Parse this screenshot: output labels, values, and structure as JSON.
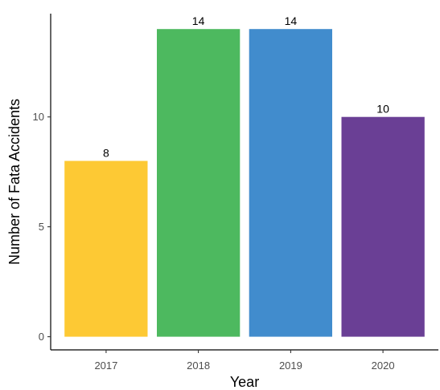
{
  "chart_data": {
    "type": "bar",
    "categories": [
      "2017",
      "2018",
      "2019",
      "2020"
    ],
    "values": [
      8,
      14,
      14,
      10
    ],
    "colors": [
      "#FDC934",
      "#4DB95F",
      "#418CCD",
      "#6A3F95"
    ],
    "xlabel": "Year",
    "ylabel": "Number of Fata Accidents",
    "ylim": [
      -0.6,
      14.7
    ],
    "yticks": [
      0,
      5,
      10
    ],
    "grid": false,
    "legend": "none"
  }
}
